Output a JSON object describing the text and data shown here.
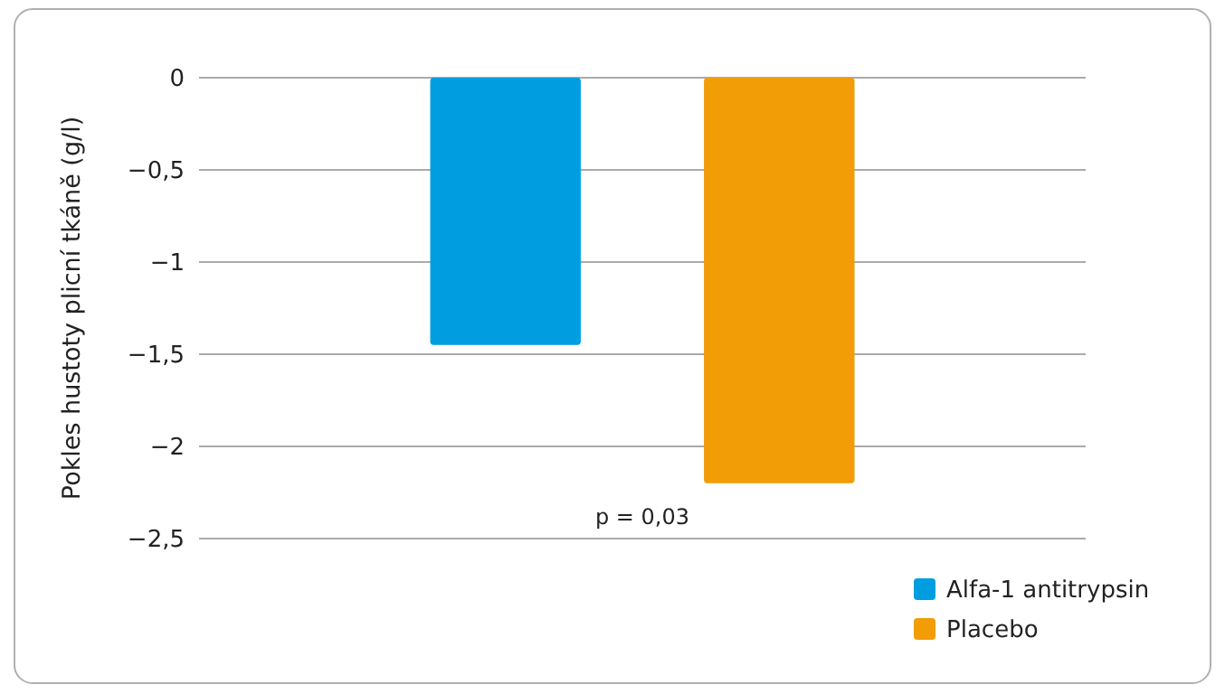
{
  "chart_data": {
    "type": "bar",
    "ylabel": "Pokles hustoty plicní tkáně (g/l)",
    "categories": [
      null
    ],
    "series": [
      {
        "name": "Alfa-1 antitrypsin",
        "color": "#009ee0",
        "values": [
          -1.45
        ]
      },
      {
        "name": "Placebo",
        "color": "#f29c06",
        "values": [
          -2.2
        ]
      }
    ],
    "ylim": [
      -2.5,
      0
    ],
    "yticks": [
      0,
      {
        "value": -0.5,
        "label": "−0,5"
      },
      {
        "value": -1,
        "label": "−1"
      },
      {
        "value": -1.5,
        "label": "−1,5"
      },
      {
        "value": -2,
        "label": "−2"
      },
      {
        "value": -2.5,
        "label": "−2,5"
      }
    ],
    "grid": "y",
    "legend": "bottom right",
    "tick_labels": "y",
    "annotations": [
      "p = 0,03"
    ]
  }
}
